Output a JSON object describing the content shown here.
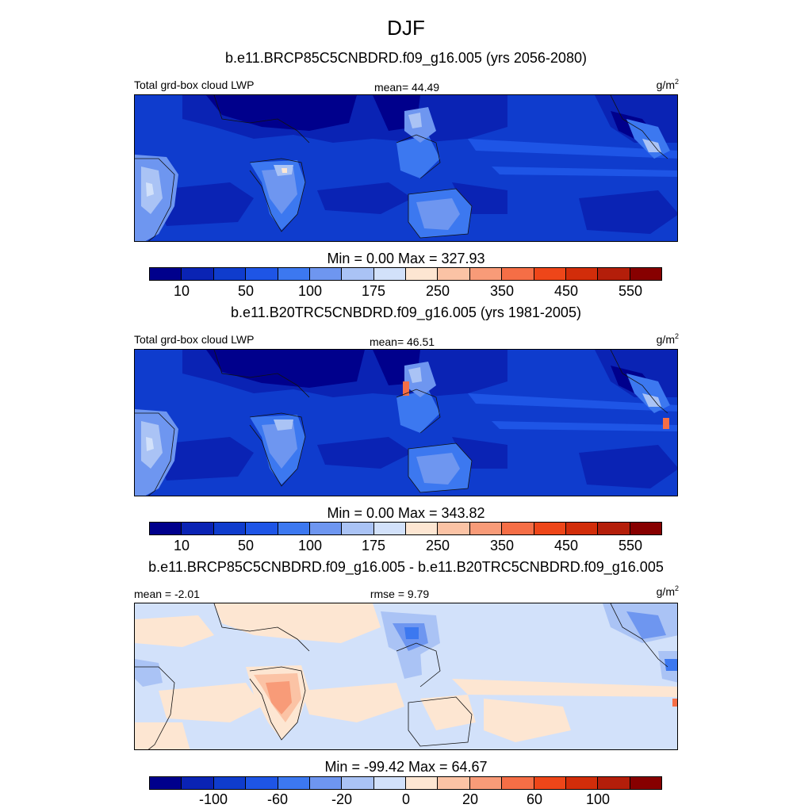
{
  "figure": {
    "title": "DJF"
  },
  "panels": [
    {
      "case_title": "b.e11.BRCP85C5CNBDRD.f09_g16.005 (yrs 2056-2080)",
      "left_label": "Total grd-box cloud LWP",
      "center_label": "mean=  44.49",
      "units_base": "g/m",
      "units_exp": "2",
      "minmax": "Min =   0.00 Max = 327.93",
      "colorbar_ticks": [
        "10",
        "50",
        "100",
        "175",
        "250",
        "350",
        "450",
        "550"
      ],
      "mean_value": 44.49,
      "min_value": 0.0,
      "max_value": 327.93
    },
    {
      "case_title": "b.e11.B20TRC5CNBDRD.f09_g16.005 (yrs 1981-2005)",
      "left_label": "Total grd-box cloud LWP",
      "center_label": "mean=  46.51",
      "units_base": "g/m",
      "units_exp": "2",
      "minmax": "Min =   0.00 Max = 343.82",
      "colorbar_ticks": [
        "10",
        "50",
        "100",
        "175",
        "250",
        "350",
        "450",
        "550"
      ],
      "mean_value": 46.51,
      "min_value": 0.0,
      "max_value": 343.82
    },
    {
      "case_title": "b.e11.BRCP85C5CNBDRD.f09_g16.005 - b.e11.B20TRC5CNBDRD.f09_g16.005",
      "left_label": "mean =  -2.01",
      "center_label": "rmse =   9.79",
      "units_base": "g/m",
      "units_exp": "2",
      "minmax": "Min = -99.42 Max =  64.67",
      "colorbar_ticks": [
        "-100",
        "-60",
        "-20",
        "0",
        "20",
        "60",
        "100"
      ],
      "mean_value": -2.01,
      "rmse_value": 9.79,
      "min_value": -99.42,
      "max_value": 64.67
    }
  ],
  "colorbar_colors": [
    "#00008c",
    "#0a23b4",
    "#0f3ccd",
    "#1e55e6",
    "#3c78f0",
    "#6e96f0",
    "#aac3f5",
    "#d2e1fa",
    "#fde6d2",
    "#fbc3a5",
    "#f89b78",
    "#f56e46",
    "#ee4619",
    "#d22d0a",
    "#b41e0a",
    "#870000"
  ],
  "chart_data": [
    {
      "type": "heatmap",
      "title": "DJF",
      "subtitle": "b.e11.BRCP85C5CNBDRD.f09_g16.005 (yrs 2056-2080)",
      "variable": "Total grd-box cloud LWP",
      "units": "g/m2",
      "mean": 44.49,
      "min": 0.0,
      "max": 327.93,
      "levels": [
        10,
        25,
        50,
        75,
        100,
        125,
        150,
        175,
        200,
        250,
        300,
        350,
        400,
        450,
        500,
        550
      ],
      "tick_labels": [
        "10",
        "50",
        "100",
        "175",
        "250",
        "350",
        "450",
        "550"
      ]
    },
    {
      "type": "heatmap",
      "subtitle": "b.e11.B20TRC5CNBDRD.f09_g16.005 (yrs 1981-2005)",
      "variable": "Total grd-box cloud LWP",
      "units": "g/m2",
      "mean": 46.51,
      "min": 0.0,
      "max": 343.82,
      "levels": [
        10,
        25,
        50,
        75,
        100,
        125,
        150,
        175,
        200,
        250,
        300,
        350,
        400,
        450,
        500,
        550
      ],
      "tick_labels": [
        "10",
        "50",
        "100",
        "175",
        "250",
        "350",
        "450",
        "550"
      ]
    },
    {
      "type": "heatmap",
      "subtitle": "b.e11.BRCP85C5CNBDRD.f09_g16.005 - b.e11.B20TRC5CNBDRD.f09_g16.005",
      "units": "g/m2",
      "mean": -2.01,
      "rmse": 9.79,
      "min": -99.42,
      "max": 64.67,
      "levels": [
        -120,
        -100,
        -80,
        -60,
        -40,
        -20,
        -10,
        0,
        10,
        20,
        40,
        60,
        80,
        100,
        120
      ],
      "tick_labels": [
        "-100",
        "-60",
        "-20",
        "0",
        "20",
        "60",
        "100"
      ]
    }
  ]
}
